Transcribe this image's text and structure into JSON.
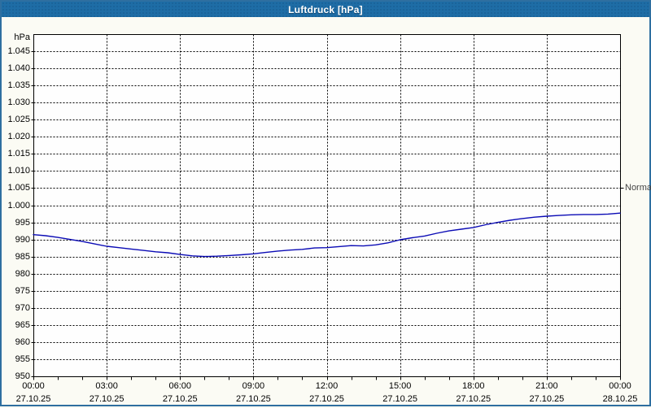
{
  "window": {
    "title": "Luftdruck [hPa]"
  },
  "colors": {
    "titlebar": "#1e6da6",
    "window_border": "#2e6fa0",
    "content_bg": "#fbfbf4",
    "plot_bg": "#fefefe",
    "grid": "#000000",
    "axis": "#000000",
    "series_line": "#0b0bb5",
    "normal_text": "#444444"
  },
  "chart_data": {
    "type": "line",
    "title": "Luftdruck [hPa]",
    "xlabel": "",
    "ylabel": "hPa",
    "ylim": [
      950,
      1050
    ],
    "grid": true,
    "legend_position": "right",
    "y_ticks": [
      {
        "label": "1.045",
        "value": 1045
      },
      {
        "label": "1.040",
        "value": 1040
      },
      {
        "label": "1.035",
        "value": 1035
      },
      {
        "label": "1.030",
        "value": 1030
      },
      {
        "label": "1.025",
        "value": 1025
      },
      {
        "label": "1.020",
        "value": 1020
      },
      {
        "label": "1.015",
        "value": 1015
      },
      {
        "label": "1.010",
        "value": 1010
      },
      {
        "label": "1.005",
        "value": 1005
      },
      {
        "label": "1.000",
        "value": 1000
      },
      {
        "label": "995",
        "value": 995
      },
      {
        "label": "990",
        "value": 990
      },
      {
        "label": "985",
        "value": 985
      },
      {
        "label": "980",
        "value": 980
      },
      {
        "label": "975",
        "value": 975
      },
      {
        "label": "970",
        "value": 970
      },
      {
        "label": "965",
        "value": 965
      },
      {
        "label": "960",
        "value": 960
      },
      {
        "label": "955",
        "value": 955
      },
      {
        "label": "950",
        "value": 950
      }
    ],
    "x_ticks": [
      {
        "time": "00:00",
        "date": "27.10.25",
        "hour": 0
      },
      {
        "time": "03:00",
        "date": "27.10.25",
        "hour": 3
      },
      {
        "time": "06:00",
        "date": "27.10.25",
        "hour": 6
      },
      {
        "time": "09:00",
        "date": "27.10.25",
        "hour": 9
      },
      {
        "time": "12:00",
        "date": "27.10.25",
        "hour": 12
      },
      {
        "time": "15:00",
        "date": "27.10.25",
        "hour": 15
      },
      {
        "time": "18:00",
        "date": "27.10.25",
        "hour": 18
      },
      {
        "time": "21:00",
        "date": "27.10.25",
        "hour": 21
      },
      {
        "time": "00:00",
        "date": "28.10.25",
        "hour": 24
      }
    ],
    "minor_x_tick_every_hours": 1,
    "normal_marker": {
      "label": "Normal",
      "value": 1005
    },
    "series": [
      {
        "name": "Luftdruck",
        "color": "#0b0bb5",
        "x_hours": [
          0,
          0.5,
          1,
          1.5,
          2,
          2.5,
          3,
          3.5,
          4,
          4.5,
          5,
          5.5,
          6,
          6.5,
          7,
          7.5,
          8,
          8.5,
          9,
          9.5,
          10,
          10.5,
          11,
          11.5,
          12,
          12.5,
          13,
          13.5,
          14,
          14.5,
          15,
          15.5,
          16,
          16.5,
          17,
          17.5,
          18,
          18.5,
          19,
          19.5,
          20,
          20.5,
          21,
          21.5,
          22,
          22.5,
          23,
          23.5,
          24
        ],
        "values": [
          991.4,
          991.1,
          990.6,
          990.0,
          989.4,
          988.7,
          988.0,
          987.6,
          987.2,
          986.8,
          986.4,
          986.1,
          985.6,
          985.2,
          985.0,
          985.1,
          985.3,
          985.5,
          985.8,
          986.2,
          986.6,
          986.9,
          987.1,
          987.5,
          987.6,
          987.9,
          988.2,
          988.1,
          988.4,
          989.0,
          989.9,
          990.5,
          991.0,
          991.8,
          992.5,
          993.0,
          993.5,
          994.3,
          995.0,
          995.6,
          996.1,
          996.5,
          996.8,
          997.0,
          997.2,
          997.3,
          997.3,
          997.4,
          997.7
        ]
      }
    ]
  }
}
